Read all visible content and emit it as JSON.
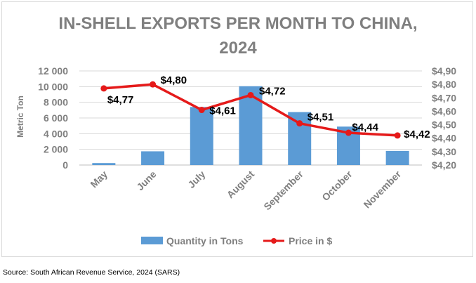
{
  "chart_data": {
    "type": "bar",
    "title_lines": [
      "IN-SHELL EXPORTS PER MONTH TO CHINA,",
      "2024"
    ],
    "categories": [
      "May",
      "June",
      "July",
      "August",
      "September",
      "October",
      "November"
    ],
    "series": [
      {
        "name": "Quantity in Tons",
        "type": "bar",
        "axis": "left",
        "color": "#5b9bd5",
        "values": [
          250,
          1750,
          7400,
          10050,
          6750,
          4900,
          1800
        ]
      },
      {
        "name": "Price in $",
        "type": "line",
        "axis": "right",
        "color": "#e51a1a",
        "values": [
          4.77,
          4.8,
          4.61,
          4.72,
          4.51,
          4.44,
          4.42
        ],
        "labels": [
          "$4,77",
          "$4,80",
          "$4,61",
          "$4,72",
          "$4,51",
          "$4,44",
          "$4,42"
        ]
      }
    ],
    "ylabel": "Metric Ton",
    "ylim": [
      0,
      12000
    ],
    "y_ticks": [
      "12 000",
      "10 000",
      "8 000",
      "6 000",
      "4 000",
      "2 000",
      "0"
    ],
    "y_tick_values": [
      12000,
      10000,
      8000,
      6000,
      4000,
      2000,
      0
    ],
    "y2lim": [
      4.2,
      4.9
    ],
    "y2_ticks": [
      "$4,90",
      "$4,80",
      "$4,70",
      "$4,60",
      "$4,50",
      "$4,40",
      "$4,30",
      "$4,20"
    ],
    "y2_tick_values": [
      4.9,
      4.8,
      4.7,
      4.6,
      4.5,
      4.4,
      4.3,
      4.2
    ],
    "grid": true,
    "legend_position": "bottom",
    "legend": [
      "Quantity in Tons",
      "Price in $"
    ]
  },
  "source": "Source: South African Revenue Service, 2024 (SARS)"
}
